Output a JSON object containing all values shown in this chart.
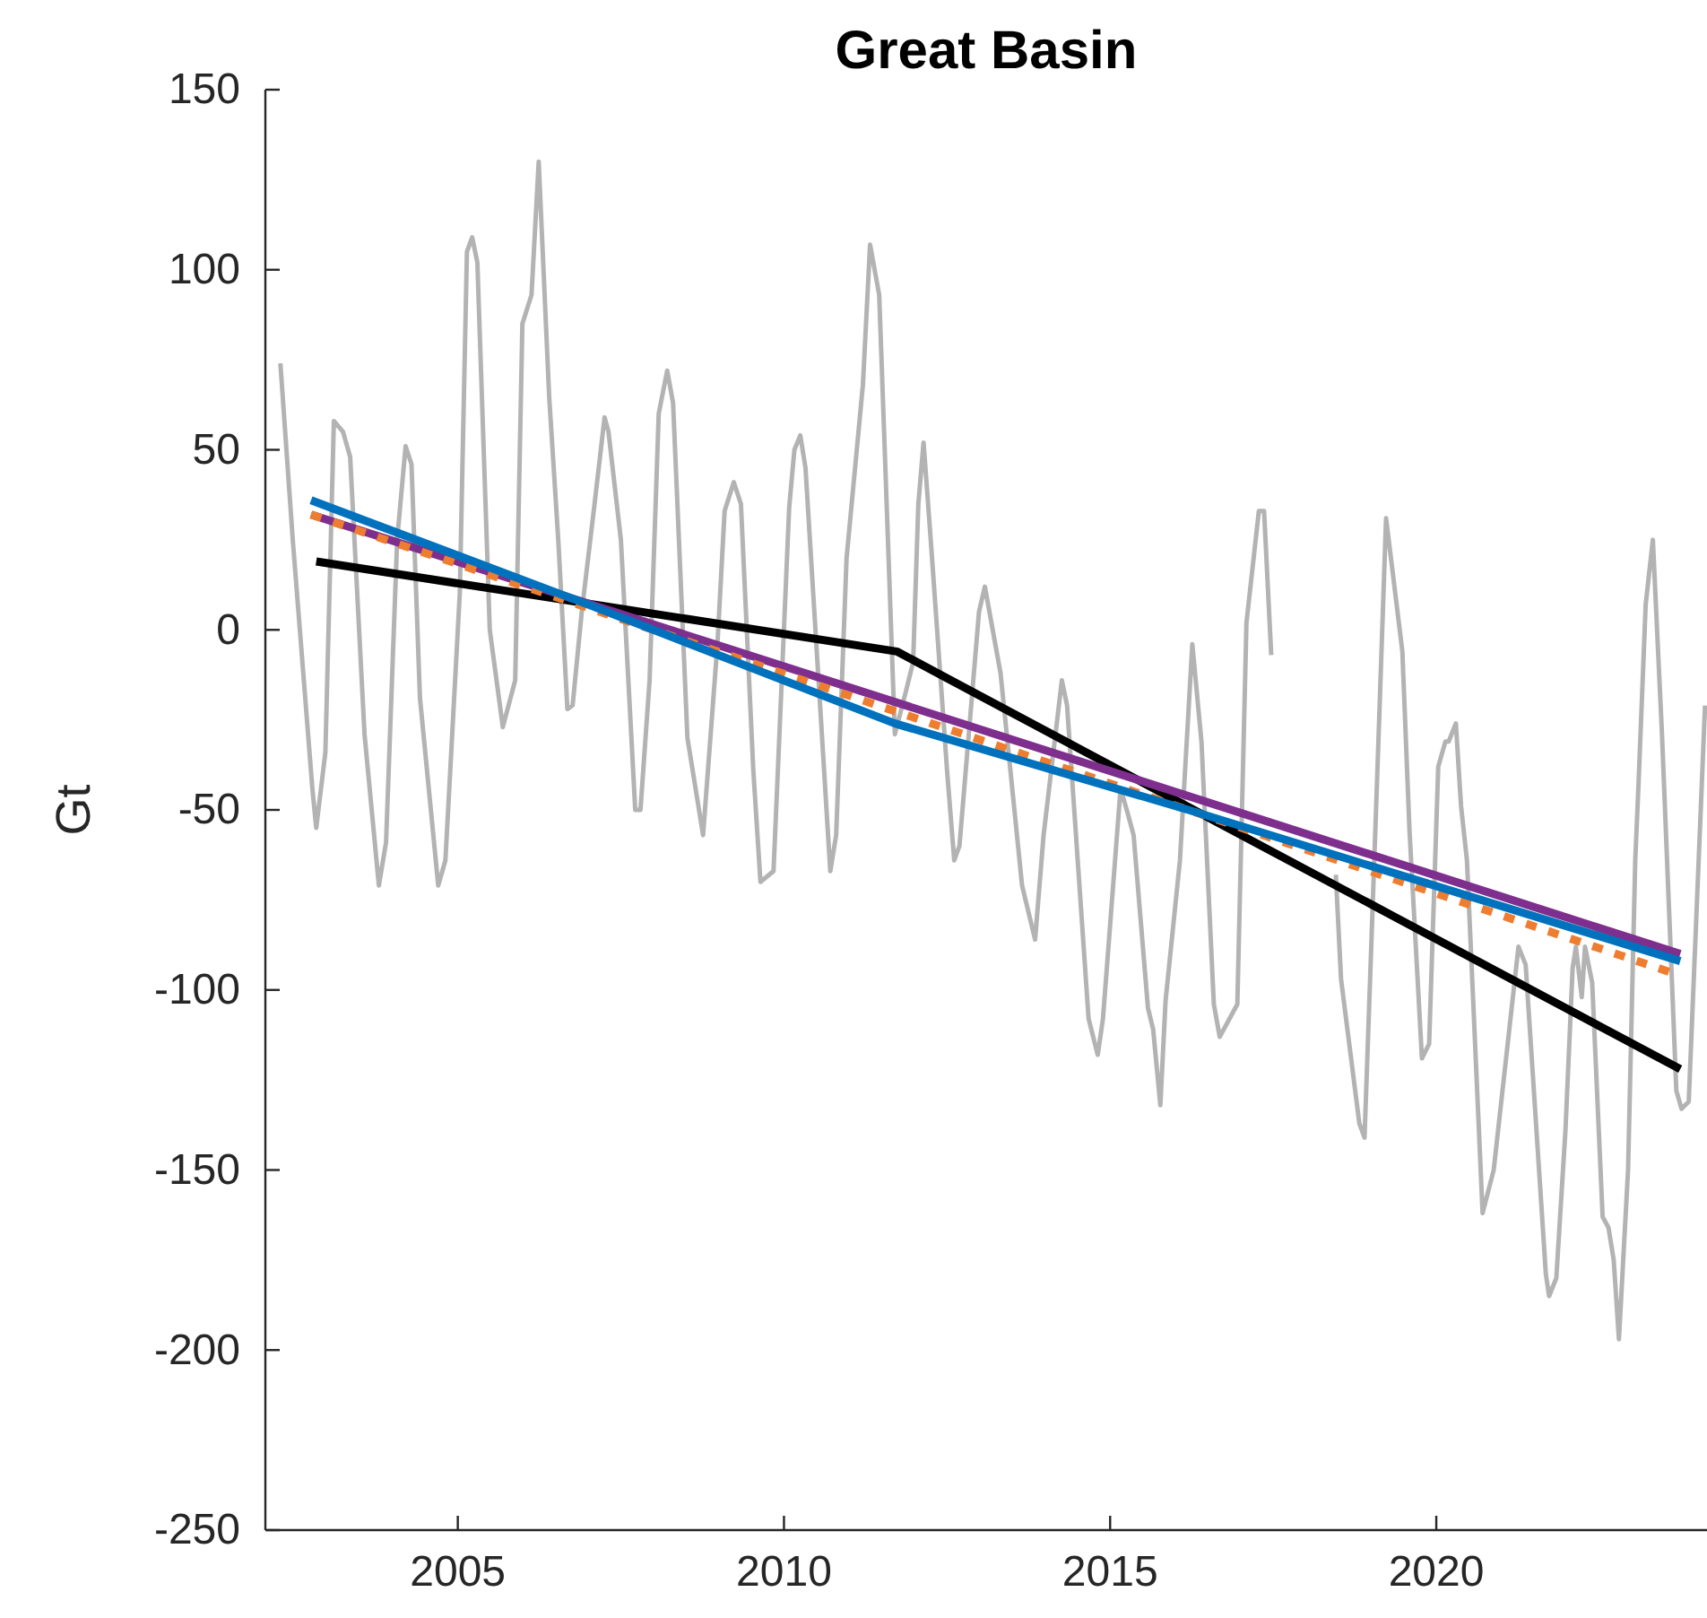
{
  "chart_data": {
    "type": "line",
    "title": "Great Basin",
    "ylabel": "Gt",
    "xlim": [
      2002.05,
      2024.15
    ],
    "xticks": [
      2005,
      2010,
      2015,
      2020
    ],
    "ylim": [
      -250,
      150
    ],
    "yticks": [
      -250,
      -200,
      -150,
      -100,
      -50,
      0,
      50,
      100,
      150
    ],
    "grid": false,
    "marker": "none",
    "series": [
      {
        "color": "#b3b3b3",
        "line_style": "solid",
        "x": [
          2002.28,
          2002.47,
          2002.77,
          2002.83,
          2002.97,
          2003.1,
          2003.24,
          2003.35,
          2003.57,
          2003.79,
          2003.9,
          2004.07,
          2004.2,
          2004.29,
          2004.42,
          2004.7,
          2004.81,
          2005.03,
          2005.14,
          2005.22,
          2005.3,
          2005.49,
          2005.69,
          2005.88,
          2005.99,
          2006.13,
          2006.24,
          2006.4,
          2006.54,
          2006.68,
          2006.76,
          2006.9,
          2007.09,
          2007.25,
          2007.31,
          2007.5,
          2007.72,
          2007.8,
          2007.94,
          2008.08,
          2008.21,
          2008.3,
          2008.52,
          2008.76,
          2008.98,
          2009.09,
          2009.23,
          2009.34,
          2009.53,
          2009.64,
          2009.84,
          2010.08,
          2010.16,
          2010.25,
          2010.33,
          2010.71,
          2010.8,
          2010.96,
          2011.21,
          2011.32,
          2011.46,
          2011.7,
          2011.87,
          2011.98,
          2012.06,
          2012.14,
          2012.25,
          2012.5,
          2012.61,
          2012.69,
          2012.99,
          2013.08,
          2013.32,
          2013.65,
          2013.85,
          2013.98,
          2014.26,
          2014.34,
          2014.67,
          2014.81,
          2014.89,
          2015.16,
          2015.27,
          2015.36,
          2015.58,
          2015.66,
          2015.77,
          2015.85,
          2016.07,
          2016.26,
          2016.4,
          2016.59,
          2016.68,
          2016.95,
          2017.09,
          2017.28,
          2017.36,
          2017.47,
          2017.95,
          2018.46,
          2018.54,
          2018.82,
          2018.9,
          2019.09,
          2019.23,
          2019.48,
          2019.59,
          2019.78,
          2019.89,
          2020.03,
          2020.14,
          2020.19,
          2020.3,
          2020.38,
          2020.47,
          2020.71,
          2020.88,
          2021.26,
          2021.37,
          2021.68,
          2021.73,
          2021.84,
          2021.98,
          2022.09,
          2022.14,
          2022.23,
          2022.28,
          2022.39,
          2022.55,
          2022.64,
          2022.72,
          2022.8,
          2022.94,
          2023.05,
          2023.1,
          2023.21,
          2023.32,
          2023.46,
          2023.68,
          2023.76,
          2023.87,
          2024.12
        ],
        "values": [
          74,
          25,
          -44,
          -55,
          -34,
          58,
          55,
          48,
          -29,
          -71,
          -59,
          25,
          51,
          46,
          -19,
          -71,
          -64,
          10,
          105,
          109,
          102,
          0,
          -27,
          -14,
          85,
          93,
          130,
          65,
          25,
          -22,
          -21,
          5,
          34,
          59,
          55,
          25,
          -50,
          -50,
          -14,
          60,
          72,
          63,
          -30,
          -57,
          -4,
          33,
          41,
          35,
          -39,
          -70,
          -67,
          34,
          50,
          54,
          45,
          -67,
          -57,
          20,
          68,
          107,
          93,
          -29,
          -17,
          -9,
          35,
          52,
          25,
          -39,
          -64,
          -60,
          5,
          12,
          -12,
          -71,
          -86,
          -57,
          -14,
          -21,
          -108,
          -118,
          -108,
          -44,
          -51,
          -57,
          -105,
          -111,
          -132,
          -103,
          -64,
          -4,
          -31,
          -104,
          -113,
          -104,
          2,
          33,
          33,
          -7,
          null,
          -68,
          -97,
          -137,
          -141,
          -43,
          31,
          -6,
          -56,
          -119,
          -115,
          -38,
          -31,
          -31,
          -26,
          -49,
          -64,
          -162,
          -150,
          -88,
          -93,
          -179,
          -185,
          -180,
          -139,
          -94,
          -88,
          -102,
          -88,
          -98,
          -163,
          -166,
          -175,
          -197,
          -150,
          -64,
          -43,
          7,
          25,
          -29,
          -128,
          -133,
          -131,
          -21
        ]
      },
      {
        "color": "#000000",
        "line_style": "solid",
        "x": [
          2002.83,
          2011.73,
          2023.74
        ],
        "values": [
          19,
          -6,
          -122
        ]
      },
      {
        "color": "#7e2f8e",
        "line_style": "solid",
        "x": [
          2002.75,
          2023.74
        ],
        "values": [
          32,
          -90
        ]
      },
      {
        "color": "#ee7d2f",
        "line_style": "dotted",
        "x": [
          2002.75,
          2023.74
        ],
        "values": [
          32,
          -96
        ]
      },
      {
        "color": "#0072bd",
        "line_style": "solid",
        "x": [
          2002.75,
          2007,
          2011.7,
          2016.2,
          2023.74
        ],
        "values": [
          36,
          7,
          -26,
          -50,
          -92
        ]
      }
    ]
  }
}
